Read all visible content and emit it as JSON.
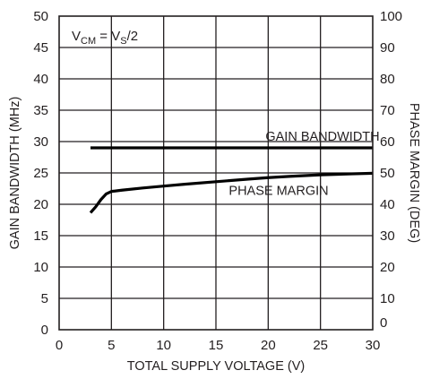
{
  "chart_data": {
    "type": "line",
    "annotation": {
      "parts": [
        {
          "text": "V",
          "sub": false
        },
        {
          "text": "CM",
          "sub": true
        },
        {
          "text": " = V",
          "sub": false
        },
        {
          "text": "S",
          "sub": true
        },
        {
          "text": "/2",
          "sub": false
        }
      ]
    },
    "xlabel": "TOTAL SUPPLY VOLTAGE (V)",
    "ylabel": "GAIN BANDWIDTH (MHz)",
    "y2label": "PHASE MARGIN (DEG)",
    "xlim": [
      0,
      30
    ],
    "ylim": [
      0,
      50
    ],
    "y2lim": [
      0,
      100
    ],
    "x_ticks": [
      0,
      5,
      10,
      15,
      20,
      25,
      30
    ],
    "x_tick_labels": [
      "0",
      "5",
      "10",
      "15",
      "20",
      "25",
      "30"
    ],
    "y_ticks": [
      0,
      5,
      10,
      15,
      20,
      25,
      30,
      35,
      40,
      45,
      50
    ],
    "y_tick_labels": [
      "0",
      "5",
      "10",
      "15",
      "20",
      "25",
      "30",
      "35",
      "40",
      "45",
      "50"
    ],
    "y2_ticks": [
      0,
      10,
      20,
      30,
      40,
      50,
      60,
      70,
      80,
      90,
      100
    ],
    "y2_tick_labels": [
      "0",
      "10",
      "20",
      "30",
      "40",
      "50",
      "60",
      "70",
      "80",
      "90",
      "100"
    ],
    "grid": true,
    "series": [
      {
        "name": "GAIN BANDWIDTH",
        "axis": "left",
        "color": "#000000",
        "x": [
          3,
          30
        ],
        "y": [
          29,
          29
        ]
      },
      {
        "name": "PHASE MARGIN",
        "axis": "right",
        "color": "#000000",
        "x": [
          3,
          3.5,
          4,
          4.5,
          5,
          6,
          8,
          10,
          12,
          15,
          18,
          20,
          22,
          25,
          28,
          30
        ],
        "y": [
          37.3,
          39.2,
          41.5,
          43.3,
          44.1,
          44.5,
          45.2,
          45.8,
          46.4,
          47.2,
          48.0,
          48.5,
          48.9,
          49.4,
          49.7,
          49.9
        ]
      }
    ]
  }
}
